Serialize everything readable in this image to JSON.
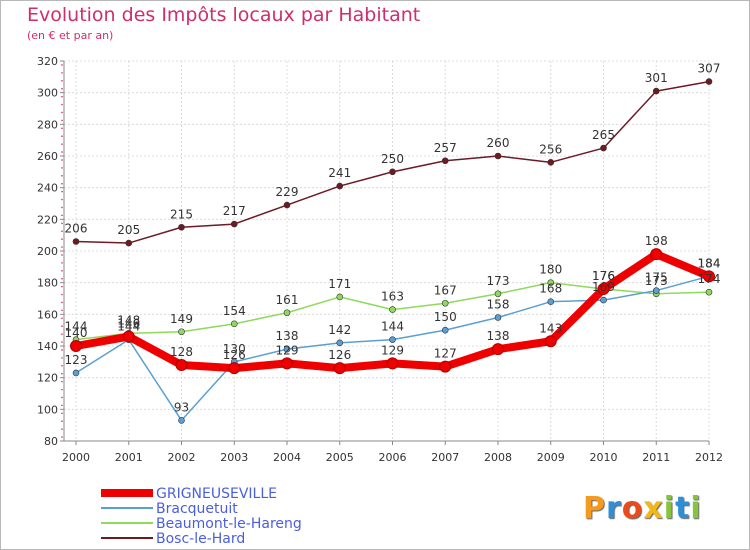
{
  "title": "Evolution des Impôts locaux par Habitant",
  "subtitle": "(en € et par an)",
  "brand": {
    "letters": [
      "P",
      "r",
      "o",
      "x",
      "i",
      "t",
      "i"
    ],
    "colors": [
      "#f39a1f",
      "#2f8fd6",
      "#e94b1c",
      "#f2b819",
      "#86c440",
      "#2f8fd6",
      "#86c440"
    ]
  },
  "chart_data": {
    "type": "line",
    "title": "Evolution des Impôts locaux par Habitant",
    "subtitle": "(en € et par an)",
    "x": [
      "2000",
      "2001",
      "2002",
      "2003",
      "2004",
      "2005",
      "2006",
      "2007",
      "2008",
      "2009",
      "2010",
      "2011",
      "2012"
    ],
    "ylim": [
      80,
      320
    ],
    "yticks": [
      80,
      100,
      120,
      140,
      160,
      180,
      200,
      220,
      240,
      260,
      280,
      300,
      320
    ],
    "grid": true,
    "legend_position": "bottom-left",
    "series": [
      {
        "name": "Bosc-le-Hard",
        "color": "#6e1a24",
        "values": [
          206,
          205,
          215,
          217,
          229,
          241,
          250,
          257,
          260,
          256,
          265,
          301,
          307
        ],
        "labels": [
          "206",
          "205",
          "215",
          "217",
          "229",
          "241",
          "250",
          "257",
          "260",
          "256",
          "265",
          "301",
          "307"
        ]
      },
      {
        "name": "Beaumont-le-Hareng",
        "color": "#8fd95c",
        "values": [
          144,
          148,
          149,
          154,
          161,
          171,
          163,
          167,
          173,
          180,
          176,
          173,
          174
        ],
        "labels": [
          "144",
          "148",
          "149",
          "154",
          "161",
          "171",
          "163",
          "167",
          "173",
          "180",
          "176",
          "173",
          "174"
        ]
      },
      {
        "name": "Bracquetuit",
        "color": "#5a9fd4",
        "values": [
          123,
          144,
          93,
          130,
          138,
          142,
          144,
          150,
          158,
          168,
          169,
          175,
          184
        ],
        "labels": [
          "123",
          "144",
          "93",
          "130",
          "138",
          "142",
          "144",
          "150",
          "158",
          "168",
          "169",
          "175",
          "184"
        ]
      },
      {
        "name": "GRIGNEUSEVILLE",
        "color": "#ee0000",
        "values": [
          140,
          146,
          128,
          126,
          129,
          126,
          129,
          127,
          138,
          143,
          176,
          198,
          184
        ],
        "labels": [
          "140",
          "146",
          "128",
          "126",
          "129",
          "126",
          "129",
          "127",
          "138",
          "143",
          "176",
          "198",
          "184"
        ]
      }
    ],
    "legend": [
      "GRIGNEUSEVILLE",
      "Bracquetuit",
      "Beaumont-le-Hareng",
      "Bosc-le-Hard"
    ]
  }
}
